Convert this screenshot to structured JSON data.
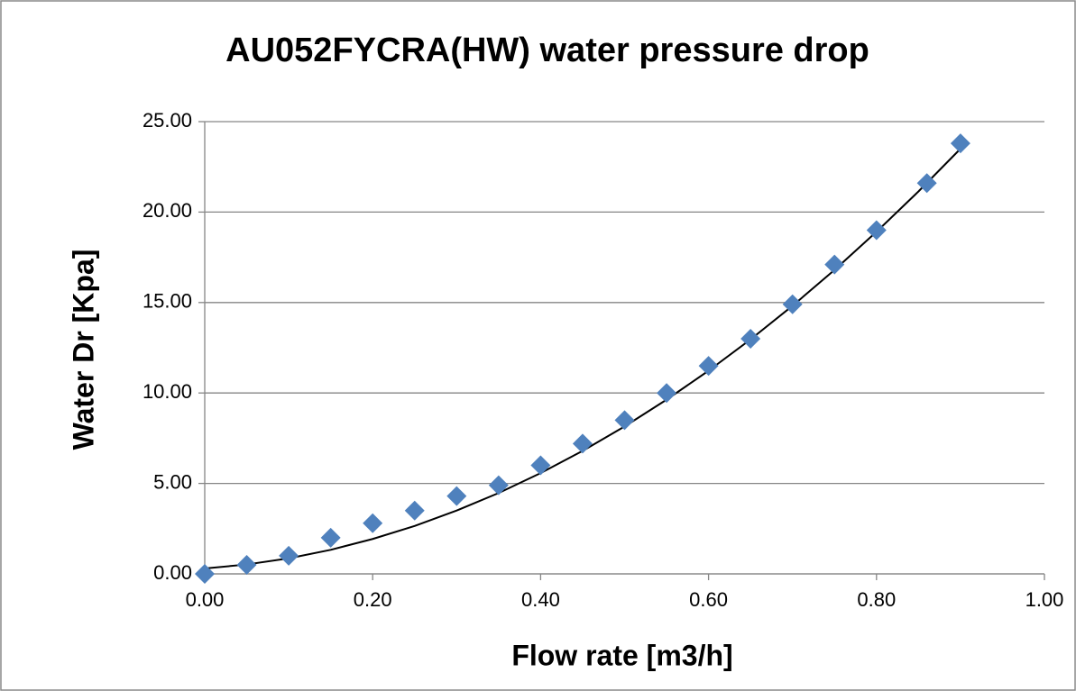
{
  "chart_data": {
    "type": "scatter",
    "title": "AU052FYCRA(HW) water pressure drop",
    "x_label": "Flow rate [m3/h]",
    "y_label": "Water Dr [Kpa]",
    "x": [
      0,
      0.05,
      0.1,
      0.15,
      0.2,
      0.25,
      0.3,
      0.35,
      0.4,
      0.45,
      0.5,
      0.55,
      0.6,
      0.65,
      0.7,
      0.75,
      0.8,
      0.86,
      0.9
    ],
    "values": [
      0,
      0.5,
      1.0,
      2.0,
      2.8,
      3.5,
      4.3,
      4.9,
      6.0,
      7.2,
      8.5,
      10.0,
      11.5,
      13.0,
      14.9,
      17.1,
      19.0,
      21.6,
      23.8
    ],
    "color": "#4f81bd",
    "trendline": {
      "x": [
        0,
        0.05,
        0.1,
        0.15,
        0.2,
        0.25,
        0.3,
        0.35,
        0.4,
        0.45,
        0.5,
        0.55,
        0.6,
        0.65,
        0.7,
        0.75,
        0.8,
        0.85,
        0.9
      ],
      "values": [
        0.3,
        0.52,
        0.86,
        1.33,
        1.93,
        2.65,
        3.5,
        4.47,
        5.57,
        6.8,
        8.15,
        9.63,
        11.23,
        12.96,
        14.82,
        16.8,
        18.91,
        21.14,
        23.5
      ],
      "color": "#000000"
    },
    "xlim": [
      0,
      1
    ],
    "ylim": [
      0,
      25
    ],
    "xticks": [
      {
        "value": 0,
        "label": "0.00"
      },
      {
        "value": 0.2,
        "label": "0.20"
      },
      {
        "value": 0.4,
        "label": "0.40"
      },
      {
        "value": 0.6,
        "label": "0.60"
      },
      {
        "value": 0.8,
        "label": "0.80"
      },
      {
        "value": 1,
        "label": "1.00"
      }
    ],
    "yticks": [
      {
        "value": 0,
        "label": "0.00"
      },
      {
        "value": 5,
        "label": "5.00"
      },
      {
        "value": 10,
        "label": "10.00"
      },
      {
        "value": 15,
        "label": "15.00"
      },
      {
        "value": 20,
        "label": "20.00"
      },
      {
        "value": 25,
        "label": "25.00"
      }
    ],
    "grid": true
  }
}
